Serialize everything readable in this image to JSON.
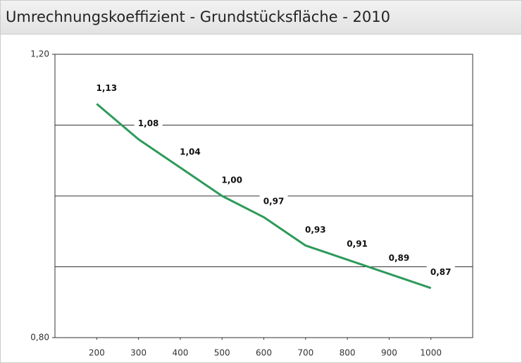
{
  "chart_data": {
    "type": "line",
    "title": "Umrechnungskoeffizient - Grundstücksfläche - 2010",
    "x": [
      200,
      300,
      400,
      500,
      600,
      700,
      800,
      900,
      1000
    ],
    "series": [
      {
        "name": "Umrechnungskoeffizient",
        "color": "#2e9a5a",
        "values": [
          1.13,
          1.08,
          1.04,
          1.0,
          0.97,
          0.93,
          0.91,
          0.89,
          0.87
        ],
        "value_labels": [
          "1,13",
          "1,08",
          "1,04",
          "1,00",
          "0,97",
          "0,93",
          "0,91",
          "0,89",
          "0,87"
        ]
      }
    ],
    "xlim": [
      100,
      1100
    ],
    "xticks": [
      200,
      300,
      400,
      500,
      600,
      700,
      800,
      900,
      1000
    ],
    "ylim": [
      0.8,
      1.2
    ],
    "yticks": [
      {
        "value": 0.8,
        "label": "0,80"
      },
      {
        "value": 1.2,
        "label": "1,20"
      }
    ],
    "grid_lines": [
      0.9,
      1.0,
      1.1
    ],
    "grid": true
  }
}
